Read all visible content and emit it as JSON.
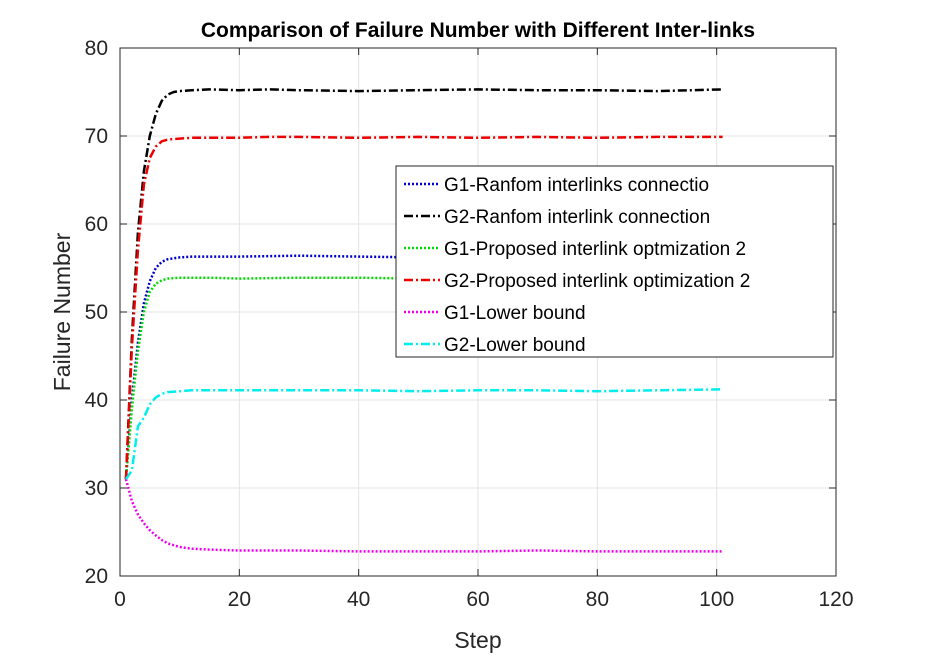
{
  "chart_data": {
    "type": "line",
    "title": "Comparison of Failure Number with Different Inter-links",
    "xlabel": "Step",
    "ylabel": "Failure Number",
    "xlim": [
      0,
      120
    ],
    "ylim": [
      20,
      80
    ],
    "xticks": [
      0,
      20,
      40,
      60,
      80,
      100,
      120
    ],
    "yticks": [
      20,
      30,
      40,
      50,
      60,
      70,
      80
    ],
    "grid": true,
    "legend_position": "upper-right",
    "x_range": [
      1,
      101
    ],
    "series": [
      {
        "name": "G1-Ranfom interlinks connectio",
        "color": "#0000CC",
        "dash": "dotted",
        "x": [
          1,
          2,
          3,
          4,
          5,
          6,
          7,
          8,
          10,
          12,
          15,
          20,
          30,
          40,
          50,
          60,
          70,
          80,
          90,
          101
        ],
        "y": [
          31,
          40,
          46.5,
          51,
          53.5,
          55,
          55.7,
          56,
          56.2,
          56.3,
          56.3,
          56.3,
          56.4,
          56.3,
          56.2,
          56.3,
          56.3,
          56.2,
          56.3,
          56.3
        ]
      },
      {
        "name": "G2-Ranfom interlink connection",
        "color": "#000000",
        "dash": "dashdot",
        "x": [
          1,
          2,
          3,
          4,
          5,
          6,
          7,
          8,
          9,
          10,
          12,
          15,
          20,
          25,
          30,
          40,
          50,
          60,
          70,
          80,
          90,
          101
        ],
        "y": [
          31,
          47,
          59,
          66,
          70,
          72.5,
          74,
          74.7,
          75,
          75.1,
          75.2,
          75.3,
          75.2,
          75.3,
          75.2,
          75.1,
          75.2,
          75.3,
          75.2,
          75.2,
          75.1,
          75.3
        ]
      },
      {
        "name": "G1-Proposed interlink optmization 2",
        "color": "#00DD00",
        "dash": "dotted",
        "x": [
          1,
          2,
          3,
          4,
          5,
          6,
          7,
          8,
          10,
          12,
          15,
          20,
          30,
          40,
          50,
          60,
          70,
          80,
          90,
          101
        ],
        "y": [
          31,
          39,
          45.5,
          50,
          52.3,
          53.2,
          53.6,
          53.8,
          53.9,
          53.9,
          53.9,
          53.8,
          53.9,
          53.9,
          53.8,
          53.9,
          53.9,
          53.8,
          53.9,
          53.9
        ]
      },
      {
        "name": "G2-Proposed interlink optimization 2",
        "color": "#EE0000",
        "dash": "dashdot",
        "x": [
          1,
          2,
          3,
          4,
          5,
          6,
          7,
          8,
          10,
          12,
          15,
          20,
          25,
          30,
          40,
          50,
          60,
          70,
          80,
          90,
          101
        ],
        "y": [
          31,
          46,
          57,
          64.5,
          67.5,
          68.8,
          69.4,
          69.6,
          69.7,
          69.8,
          69.8,
          69.8,
          69.9,
          69.9,
          69.8,
          69.9,
          69.8,
          69.9,
          69.8,
          69.9,
          69.9
        ]
      },
      {
        "name": "G1-Lower bound",
        "color": "#EE00EE",
        "dash": "dotted",
        "x": [
          1,
          2,
          3,
          4,
          5,
          6,
          7,
          8,
          10,
          12,
          15,
          20,
          30,
          40,
          50,
          60,
          70,
          80,
          90,
          101
        ],
        "y": [
          31,
          28.5,
          27,
          26,
          25.2,
          24.6,
          24.1,
          23.7,
          23.3,
          23.1,
          23.0,
          22.9,
          22.9,
          22.8,
          22.8,
          22.8,
          22.9,
          22.8,
          22.8,
          22.8
        ]
      },
      {
        "name": "G2-Lower bound",
        "color": "#00EEEE",
        "dash": "dashdot",
        "x": [
          1,
          2,
          3,
          4,
          5,
          6,
          7,
          8,
          10,
          12,
          15,
          20,
          30,
          40,
          50,
          60,
          70,
          80,
          90,
          101
        ],
        "y": [
          31,
          32,
          37,
          38,
          39.5,
          40.3,
          40.7,
          40.9,
          41.0,
          41.1,
          41.1,
          41.1,
          41.1,
          41.1,
          41.0,
          41.1,
          41.1,
          41.0,
          41.1,
          41.2
        ]
      }
    ]
  }
}
